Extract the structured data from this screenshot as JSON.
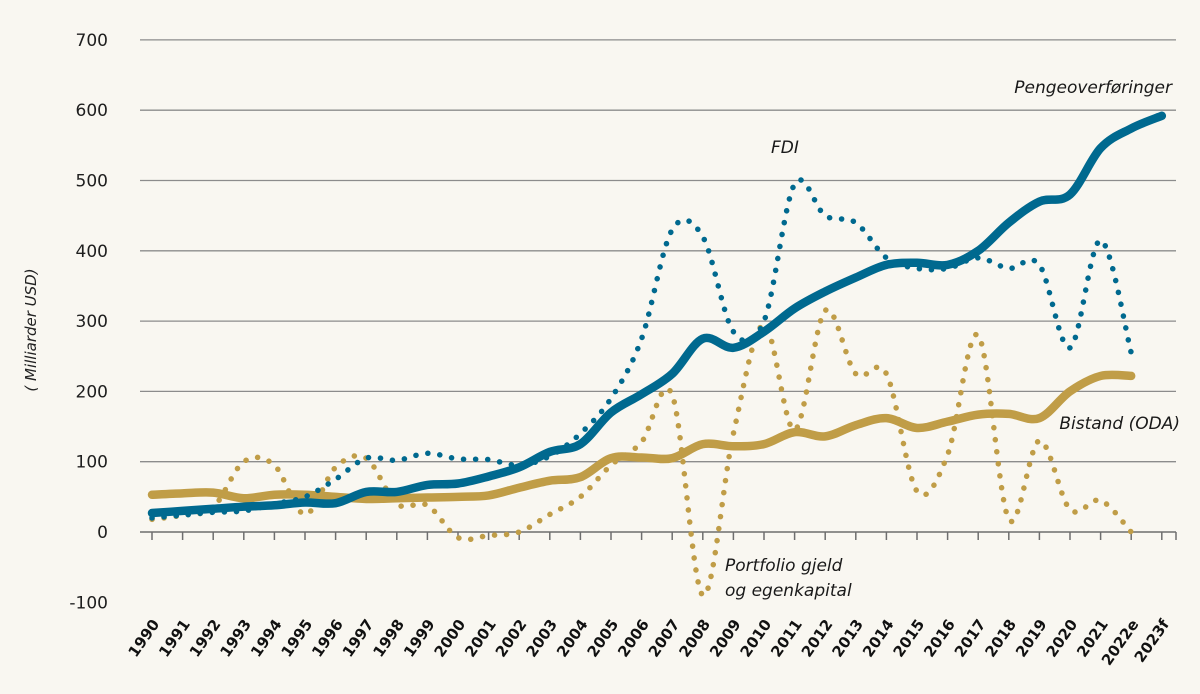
{
  "chart_data": {
    "type": "line",
    "title": "",
    "xlabel": "",
    "ylabel": "( Milliarder USD)",
    "ylim": [
      -100,
      700
    ],
    "yticks": [
      -100,
      0,
      100,
      200,
      300,
      400,
      500,
      600,
      700
    ],
    "grid": true,
    "legend": "inline labels",
    "categories": [
      "1990",
      "1991",
      "1992",
      "1993",
      "1994",
      "1995",
      "1996",
      "1997",
      "1998",
      "1999",
      "2000",
      "2001",
      "2002",
      "2003",
      "2004",
      "2005",
      "2006",
      "2007",
      "2008",
      "2009",
      "2010",
      "2011",
      "2012",
      "2013",
      "2014",
      "2015",
      "2016",
      "2017",
      "2018",
      "2019",
      "2020",
      "2021",
      "2022e",
      "2023f"
    ],
    "series": [
      {
        "name": "Pengeoverføringer",
        "style": "solid",
        "color": "#00698f",
        "values": [
          27,
          30,
          33,
          36,
          38,
          42,
          41,
          57,
          57,
          67,
          69,
          79,
          92,
          114,
          125,
          170,
          196,
          225,
          275,
          262,
          285,
          318,
          342,
          362,
          380,
          383,
          380,
          400,
          440,
          470,
          480,
          546,
          574,
          592
        ]
      },
      {
        "name": "FDI",
        "style": "dotted",
        "color": "#00698f",
        "values": [
          20,
          24,
          28,
          30,
          40,
          50,
          75,
          105,
          102,
          112,
          104,
          103,
          95,
          108,
          140,
          190,
          275,
          430,
          420,
          285,
          300,
          495,
          450,
          440,
          390,
          375,
          375,
          390,
          375,
          380,
          262,
          415,
          255,
          null
        ]
      },
      {
        "name": "Bistand (ODA)",
        "style": "solid",
        "color": "#c09d47",
        "values": [
          53,
          55,
          56,
          48,
          53,
          53,
          50,
          47,
          48,
          49,
          50,
          52,
          63,
          73,
          78,
          105,
          106,
          105,
          125,
          122,
          125,
          142,
          136,
          152,
          162,
          148,
          157,
          167,
          168,
          162,
          200,
          222,
          222,
          null
        ]
      },
      {
        "name": "Portfolio gjeld og egenkapital",
        "style": "dotted",
        "color": "#c09d47",
        "values": [
          18,
          24,
          35,
          100,
          95,
          25,
          92,
          105,
          40,
          38,
          -8,
          -5,
          0,
          25,
          50,
          95,
          128,
          195,
          -90,
          140,
          295,
          145,
          315,
          225,
          225,
          58,
          110,
          280,
          18,
          130,
          32,
          45,
          0,
          null
        ]
      }
    ],
    "annotations": {
      "remittances": "Pengeoverføringer",
      "fdi": "FDI",
      "oda": "Bistand (ODA)",
      "portfolio_line1": "Portfolio gjeld",
      "portfolio_line2": "og egenkapital"
    }
  }
}
